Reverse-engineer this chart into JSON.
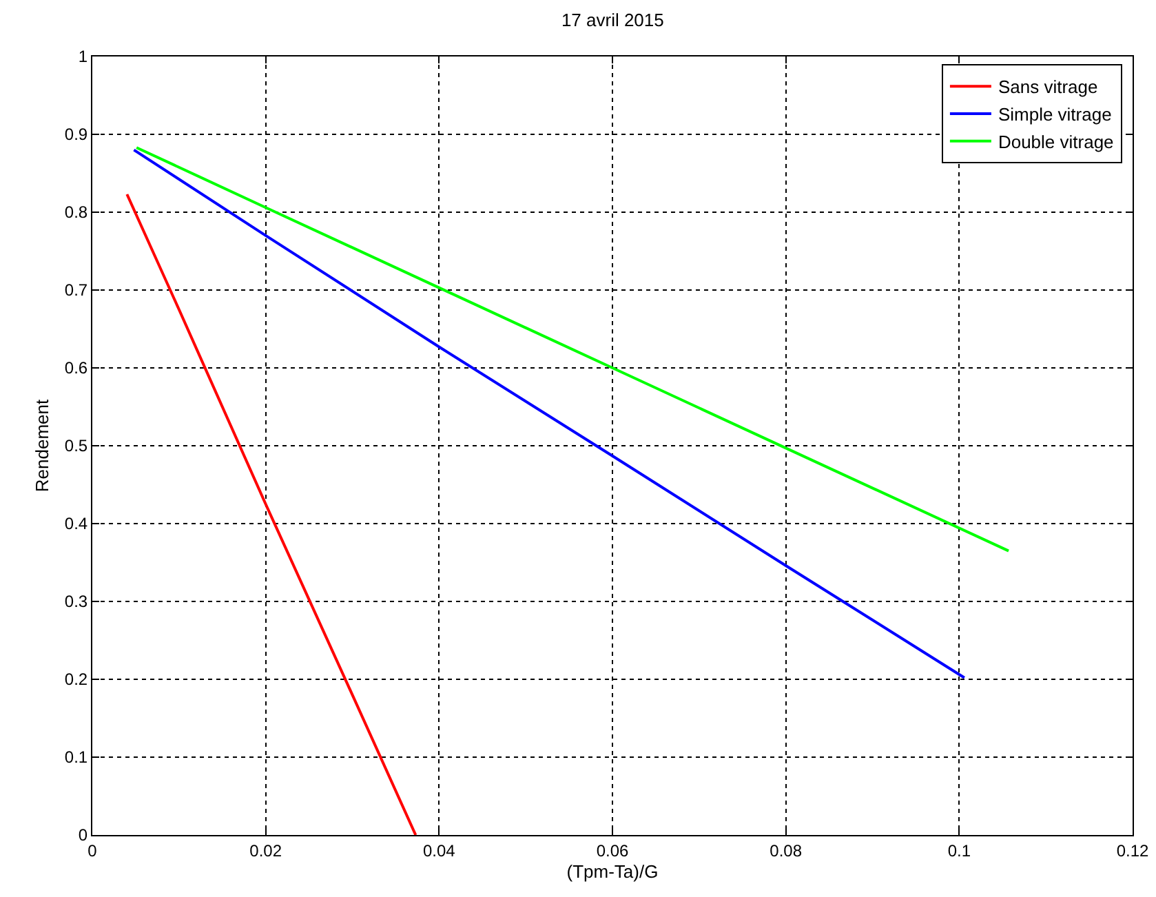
{
  "chart_data": {
    "type": "line",
    "title": "17 avril 2015",
    "xlabel": "(Tpm-Ta)/G",
    "ylabel": "Rendement",
    "xlim": [
      0,
      0.12
    ],
    "xticks": [
      0,
      0.02,
      0.04,
      0.06,
      0.08,
      0.1,
      0.12
    ],
    "ylim": [
      0,
      1
    ],
    "yticks": [
      0,
      0.1,
      0.2,
      0.3,
      0.4,
      0.5,
      0.6,
      0.7,
      0.8,
      0.9,
      1
    ],
    "grid": true,
    "legend": "top right",
    "line_style": "solid",
    "series": [
      {
        "name": "Sans vitrage",
        "color": "#ff0000",
        "x": [
          0.004,
          0.01,
          0.02,
          0.03,
          0.0373
        ],
        "values": [
          0.823,
          0.675,
          0.425,
          0.18,
          0
        ]
      },
      {
        "name": "Simple vitrage",
        "color": "#0000ff",
        "x": [
          0.0048,
          0.02,
          0.04,
          0.06,
          0.08,
          0.1006
        ],
        "values": [
          0.88,
          0.77,
          0.627,
          0.487,
          0.346,
          0.202
        ]
      },
      {
        "name": "Double vitrage",
        "color": "#00ff00",
        "x": [
          0.0051,
          0.02,
          0.04,
          0.06,
          0.08,
          0.1057
        ],
        "values": [
          0.883,
          0.806,
          0.703,
          0.6,
          0.497,
          0.365
        ]
      }
    ]
  }
}
